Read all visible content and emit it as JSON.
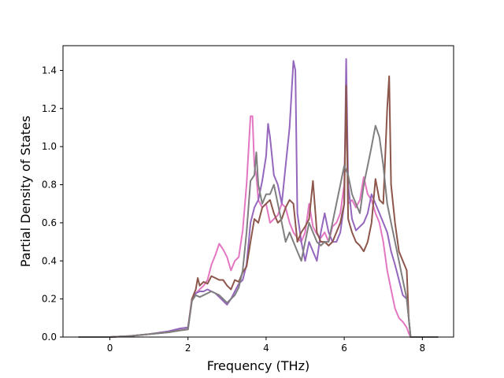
{
  "chart_data": {
    "type": "line",
    "title": "",
    "xlabel": "Frequency (THz)",
    "ylabel": "Partial Density of States",
    "xlim": [
      -1.2,
      8.8
    ],
    "ylim": [
      0.0,
      1.53
    ],
    "grid": false,
    "legend": "none",
    "xticks": [
      0,
      2,
      4,
      6,
      8
    ],
    "yticks": [
      0.0,
      0.2,
      0.4,
      0.6,
      0.8,
      1.0,
      1.2,
      1.4
    ],
    "series": [
      {
        "color": "#e377c2",
        "x": [
          -0.8,
          0.0,
          0.5,
          1.0,
          1.5,
          1.8,
          2.0,
          2.1,
          2.2,
          2.3,
          2.4,
          2.5,
          2.6,
          2.7,
          2.8,
          2.9,
          3.0,
          3.1,
          3.2,
          3.3,
          3.4,
          3.5,
          3.6,
          3.65,
          3.7,
          3.75,
          3.8,
          3.9,
          4.0,
          4.1,
          4.2,
          4.3,
          4.4,
          4.5,
          4.6,
          4.7,
          4.8,
          4.9,
          5.0,
          5.1,
          5.2,
          5.3,
          5.4,
          5.5,
          5.6,
          5.7,
          5.8,
          5.9,
          6.0,
          6.05,
          6.1,
          6.2,
          6.3,
          6.4,
          6.5,
          6.6,
          6.7,
          6.8,
          6.9,
          7.0,
          7.1,
          7.2,
          7.3,
          7.4,
          7.5,
          7.6,
          7.65,
          7.7,
          8.4
        ],
        "y": [
          0.0,
          0.0,
          0.005,
          0.015,
          0.03,
          0.045,
          0.05,
          0.2,
          0.23,
          0.25,
          0.27,
          0.3,
          0.38,
          0.43,
          0.49,
          0.46,
          0.42,
          0.35,
          0.4,
          0.42,
          0.56,
          0.8,
          1.16,
          1.16,
          0.9,
          0.85,
          0.72,
          0.68,
          0.7,
          0.6,
          0.62,
          0.64,
          0.7,
          0.68,
          0.6,
          0.55,
          0.52,
          0.5,
          0.55,
          0.7,
          0.58,
          0.54,
          0.52,
          0.55,
          0.5,
          0.58,
          0.6,
          0.65,
          0.8,
          1.3,
          0.7,
          0.72,
          0.68,
          0.72,
          0.84,
          0.75,
          0.72,
          0.65,
          0.6,
          0.5,
          0.35,
          0.25,
          0.15,
          0.1,
          0.08,
          0.05,
          0.02,
          0.0,
          0.0
        ]
      },
      {
        "color": "#9467bd",
        "x": [
          -0.8,
          0.0,
          0.5,
          1.0,
          1.5,
          1.8,
          2.0,
          2.1,
          2.2,
          2.3,
          2.4,
          2.5,
          2.6,
          2.7,
          2.8,
          2.9,
          3.0,
          3.1,
          3.2,
          3.3,
          3.4,
          3.5,
          3.6,
          3.7,
          3.8,
          3.9,
          4.0,
          4.05,
          4.1,
          4.2,
          4.3,
          4.4,
          4.5,
          4.6,
          4.7,
          4.75,
          4.8,
          4.9,
          5.0,
          5.1,
          5.2,
          5.3,
          5.4,
          5.5,
          5.6,
          5.7,
          5.8,
          5.9,
          6.0,
          6.05,
          6.1,
          6.2,
          6.3,
          6.4,
          6.5,
          6.6,
          6.7,
          6.8,
          6.9,
          7.0,
          7.1,
          7.2,
          7.3,
          7.4,
          7.5,
          7.6,
          7.65,
          7.7,
          8.4
        ],
        "y": [
          0.0,
          0.0,
          0.005,
          0.015,
          0.03,
          0.045,
          0.05,
          0.19,
          0.23,
          0.24,
          0.24,
          0.25,
          0.24,
          0.23,
          0.21,
          0.19,
          0.17,
          0.2,
          0.24,
          0.28,
          0.3,
          0.38,
          0.6,
          0.68,
          0.72,
          0.82,
          0.95,
          1.12,
          1.05,
          0.85,
          0.8,
          0.7,
          0.9,
          1.1,
          1.45,
          1.4,
          0.65,
          0.5,
          0.4,
          0.5,
          0.45,
          0.4,
          0.55,
          0.65,
          0.55,
          0.5,
          0.5,
          0.55,
          0.7,
          1.46,
          0.8,
          0.62,
          0.56,
          0.58,
          0.6,
          0.65,
          0.75,
          0.7,
          0.65,
          0.6,
          0.55,
          0.45,
          0.38,
          0.3,
          0.22,
          0.2,
          0.1,
          0.0,
          0.0
        ]
      },
      {
        "color": "#8c564b",
        "x": [
          -0.8,
          0.0,
          0.5,
          1.0,
          1.5,
          1.8,
          2.0,
          2.1,
          2.2,
          2.25,
          2.3,
          2.4,
          2.5,
          2.6,
          2.7,
          2.8,
          2.9,
          3.0,
          3.1,
          3.2,
          3.3,
          3.4,
          3.5,
          3.6,
          3.7,
          3.8,
          3.9,
          4.0,
          4.1,
          4.2,
          4.3,
          4.4,
          4.5,
          4.6,
          4.7,
          4.8,
          4.9,
          5.0,
          5.1,
          5.2,
          5.3,
          5.4,
          5.5,
          5.6,
          5.7,
          5.8,
          5.9,
          6.0,
          6.05,
          6.1,
          6.2,
          6.3,
          6.4,
          6.5,
          6.6,
          6.7,
          6.8,
          6.9,
          7.0,
          7.1,
          7.15,
          7.2,
          7.3,
          7.4,
          7.5,
          7.6,
          7.65,
          7.7,
          8.4
        ],
        "y": [
          0.0,
          0.0,
          0.005,
          0.015,
          0.025,
          0.035,
          0.04,
          0.2,
          0.25,
          0.31,
          0.27,
          0.29,
          0.28,
          0.32,
          0.31,
          0.3,
          0.3,
          0.27,
          0.25,
          0.3,
          0.29,
          0.34,
          0.37,
          0.5,
          0.62,
          0.6,
          0.68,
          0.7,
          0.72,
          0.65,
          0.6,
          0.62,
          0.68,
          0.72,
          0.7,
          0.5,
          0.55,
          0.58,
          0.62,
          0.82,
          0.55,
          0.5,
          0.5,
          0.48,
          0.5,
          0.55,
          0.6,
          0.7,
          1.32,
          0.62,
          0.55,
          0.5,
          0.48,
          0.45,
          0.5,
          0.6,
          0.83,
          0.72,
          0.7,
          1.2,
          1.37,
          0.8,
          0.6,
          0.45,
          0.4,
          0.35,
          0.1,
          0.0,
          0.0
        ]
      },
      {
        "color": "#7f7f7f",
        "x": [
          -0.8,
          0.0,
          0.5,
          1.0,
          1.5,
          1.8,
          2.0,
          2.1,
          2.2,
          2.3,
          2.4,
          2.5,
          2.6,
          2.7,
          2.8,
          2.9,
          3.0,
          3.1,
          3.2,
          3.3,
          3.4,
          3.5,
          3.6,
          3.7,
          3.75,
          3.8,
          3.9,
          4.0,
          4.1,
          4.2,
          4.3,
          4.4,
          4.5,
          4.6,
          4.7,
          4.8,
          4.9,
          5.0,
          5.1,
          5.2,
          5.3,
          5.4,
          5.5,
          5.6,
          5.7,
          5.8,
          5.9,
          6.0,
          6.1,
          6.2,
          6.3,
          6.4,
          6.5,
          6.6,
          6.7,
          6.8,
          6.9,
          7.0,
          7.1,
          7.2,
          7.3,
          7.4,
          7.5,
          7.6,
          7.65,
          7.7,
          8.4
        ],
        "y": [
          0.0,
          0.0,
          0.005,
          0.015,
          0.025,
          0.035,
          0.04,
          0.19,
          0.22,
          0.21,
          0.22,
          0.23,
          0.24,
          0.23,
          0.22,
          0.2,
          0.18,
          0.2,
          0.22,
          0.26,
          0.35,
          0.55,
          0.82,
          0.85,
          0.97,
          0.8,
          0.7,
          0.75,
          0.75,
          0.8,
          0.7,
          0.6,
          0.5,
          0.55,
          0.5,
          0.45,
          0.4,
          0.5,
          0.6,
          0.55,
          0.5,
          0.48,
          0.5,
          0.5,
          0.6,
          0.7,
          0.8,
          0.9,
          0.85,
          0.75,
          0.7,
          0.65,
          0.8,
          0.9,
          1.0,
          1.11,
          1.05,
          0.9,
          0.7,
          0.6,
          0.5,
          0.4,
          0.3,
          0.2,
          0.1,
          0.0,
          0.0
        ]
      }
    ]
  }
}
